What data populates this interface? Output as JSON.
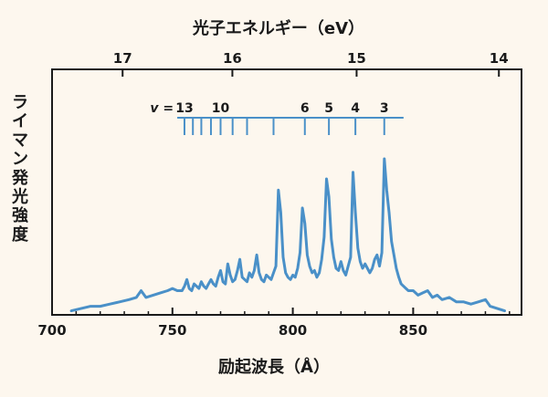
{
  "chart_data": {
    "type": "line",
    "title": "",
    "xlabel": "励起波長（Å）",
    "ylabel": "ライマン発光強度",
    "top_xlabel": "光子エネルギー（eV）",
    "xlim": [
      700,
      895
    ],
    "ylim": [
      0,
      1
    ],
    "x_ticks": [
      "700",
      "750",
      "800",
      "850"
    ],
    "x_tick_values": [
      700,
      750,
      800,
      850
    ],
    "top_ticks": [
      "17",
      "16",
      "15",
      "14"
    ],
    "top_tick_positions_wavelength": [
      729.3,
      774.9,
      826.5,
      885.6
    ],
    "grid": false,
    "series": [
      {
        "color": "#4a90c8",
        "x": [
          708,
          712,
          716,
          720,
          724,
          728,
          732,
          735,
          737,
          739,
          742,
          745,
          748,
          750,
          752,
          754,
          755,
          756,
          757,
          758,
          759,
          760,
          761,
          762,
          763,
          764,
          765,
          766,
          767,
          768,
          769,
          770,
          771,
          772,
          773,
          774,
          775,
          776,
          777,
          778,
          779,
          780,
          781,
          782,
          783,
          784,
          785,
          786,
          787,
          788,
          789,
          790,
          791,
          792,
          793,
          794,
          795,
          796,
          797,
          798,
          799,
          800,
          801,
          802,
          803,
          804,
          805,
          806,
          807,
          808,
          809,
          810,
          811,
          812,
          813,
          814,
          815,
          816,
          817,
          818,
          819,
          820,
          821,
          822,
          823,
          824,
          825,
          826,
          827,
          828,
          829,
          830,
          831,
          832,
          833,
          834,
          835,
          836,
          837,
          838,
          839,
          840,
          841,
          842,
          843,
          844,
          845,
          846,
          847,
          848,
          850,
          852,
          854,
          856,
          858,
          860,
          862,
          865,
          868,
          871,
          874,
          877,
          880,
          882,
          885,
          888
        ],
        "y": [
          0.01,
          0.02,
          0.03,
          0.03,
          0.04,
          0.05,
          0.06,
          0.07,
          0.1,
          0.07,
          0.08,
          0.09,
          0.1,
          0.11,
          0.1,
          0.1,
          0.12,
          0.15,
          0.11,
          0.1,
          0.13,
          0.12,
          0.11,
          0.14,
          0.12,
          0.11,
          0.13,
          0.15,
          0.13,
          0.12,
          0.16,
          0.19,
          0.14,
          0.13,
          0.22,
          0.17,
          0.14,
          0.15,
          0.19,
          0.24,
          0.16,
          0.15,
          0.14,
          0.18,
          0.16,
          0.19,
          0.26,
          0.18,
          0.15,
          0.14,
          0.17,
          0.16,
          0.15,
          0.18,
          0.21,
          0.55,
          0.45,
          0.25,
          0.18,
          0.16,
          0.15,
          0.17,
          0.16,
          0.2,
          0.27,
          0.47,
          0.4,
          0.26,
          0.21,
          0.18,
          0.19,
          0.16,
          0.18,
          0.24,
          0.34,
          0.6,
          0.52,
          0.33,
          0.25,
          0.2,
          0.19,
          0.23,
          0.19,
          0.17,
          0.21,
          0.25,
          0.63,
          0.45,
          0.29,
          0.23,
          0.2,
          0.22,
          0.2,
          0.18,
          0.2,
          0.24,
          0.26,
          0.21,
          0.27,
          0.69,
          0.55,
          0.45,
          0.32,
          0.26,
          0.2,
          0.16,
          0.13,
          0.12,
          0.11,
          0.1,
          0.1,
          0.08,
          0.09,
          0.1,
          0.07,
          0.08,
          0.06,
          0.07,
          0.05,
          0.05,
          0.04,
          0.05,
          0.06,
          0.03,
          0.02,
          0.01
        ]
      }
    ],
    "progression": {
      "symbol": "v =",
      "labels": [
        "13",
        "10",
        "6",
        "5",
        "4",
        "3"
      ],
      "label_wavelengths": [
        755,
        770,
        805,
        815,
        826,
        838
      ],
      "tick_wavelengths": [
        755,
        758.5,
        762,
        766,
        770,
        775,
        781,
        792,
        805,
        815,
        826,
        838
      ],
      "line_range": [
        752,
        846
      ],
      "color": "#4a90c8"
    }
  }
}
